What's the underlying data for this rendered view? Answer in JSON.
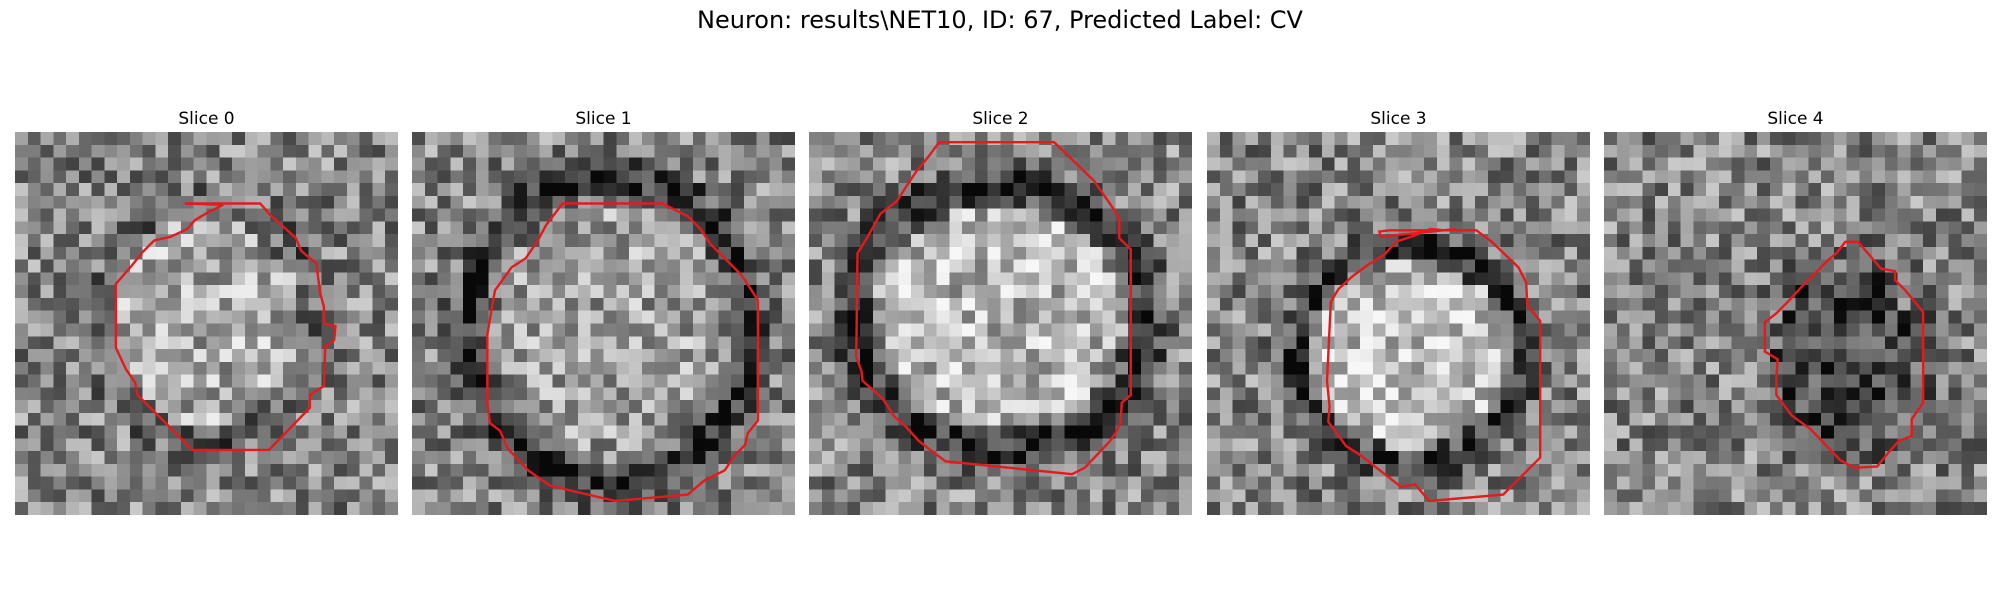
{
  "title": "Neuron: results\\NET10, ID: 67, Predicted Label: CV",
  "colors": {
    "contour": "#e41a1c",
    "background": "#ffffff",
    "colormap": "grayscale"
  },
  "grid": {
    "cols": 30,
    "rows": 30
  },
  "panels": [
    {
      "label": "Slice 0",
      "ring_dark": false,
      "ring_center": [
        15,
        15
      ],
      "ring_radius": [
        8.5,
        9.5
      ],
      "core_bright": 0.15,
      "contour": [
        [
          13.3,
          5.6
        ],
        [
          19.2,
          5.6
        ],
        [
          20,
          6.5
        ],
        [
          22,
          8.3
        ],
        [
          22.4,
          9.3
        ],
        [
          23.6,
          10.3
        ],
        [
          23.9,
          12.6
        ],
        [
          24.2,
          13.7
        ],
        [
          24.2,
          15
        ],
        [
          25.1,
          15.2
        ],
        [
          25,
          16.3
        ],
        [
          24.3,
          16.8
        ],
        [
          24.2,
          19.9
        ],
        [
          23.1,
          20.6
        ],
        [
          23.1,
          21.6
        ],
        [
          19.9,
          24.9
        ],
        [
          13.9,
          24.9
        ],
        [
          9.6,
          20.6
        ],
        [
          9.4,
          19.6
        ],
        [
          8.7,
          18.6
        ],
        [
          7.9,
          16.9
        ],
        [
          7.9,
          11.9
        ],
        [
          9.2,
          10.4
        ],
        [
          10,
          9.4
        ],
        [
          10.9,
          8.5
        ],
        [
          12.2,
          8.2
        ],
        [
          13.5,
          7.6
        ],
        [
          14.1,
          6.9
        ],
        [
          15.1,
          6.3
        ],
        [
          16.3,
          5.7
        ]
      ]
    },
    {
      "label": "Slice 1",
      "ring_dark": true,
      "ring_center": [
        15.5,
        15.5
      ],
      "ring_radius": [
        11,
        12
      ],
      "core_bright": 0.1,
      "contour": [
        [
          11.8,
          5.6
        ],
        [
          19.6,
          5.6
        ],
        [
          21.6,
          6.6
        ],
        [
          22.6,
          7.6
        ],
        [
          23.4,
          8.8
        ],
        [
          25.8,
          11.2
        ],
        [
          26.4,
          12.1
        ],
        [
          27.1,
          13.2
        ],
        [
          27.1,
          22.6
        ],
        [
          26.3,
          23.6
        ],
        [
          26.1,
          24.5
        ],
        [
          25.3,
          25.3
        ],
        [
          24.5,
          26.5
        ],
        [
          22.9,
          27.3
        ],
        [
          21.6,
          28.4
        ],
        [
          15.9,
          28.9
        ],
        [
          10.8,
          27.7
        ],
        [
          9.1,
          26.5
        ],
        [
          7.5,
          24.8
        ],
        [
          6.9,
          23.4
        ],
        [
          6.1,
          22.8
        ],
        [
          5.9,
          21.2
        ],
        [
          5.9,
          19.1
        ],
        [
          5.9,
          15.9
        ],
        [
          6.2,
          14.1
        ],
        [
          6.5,
          12.4
        ],
        [
          7.8,
          10.6
        ],
        [
          8.9,
          9.9
        ],
        [
          9.8,
          8.6
        ],
        [
          10.5,
          7.3
        ]
      ]
    },
    {
      "label": "Slice 2",
      "ring_dark": true,
      "ring_center": [
        15,
        14.5
      ],
      "ring_radius": [
        11.5,
        10.5
      ],
      "core_bright": 0.2,
      "contour": [
        [
          10.2,
          0.8
        ],
        [
          19.2,
          0.8
        ],
        [
          22.3,
          3.8
        ],
        [
          23.7,
          5.8
        ],
        [
          24.3,
          6.8
        ],
        [
          24.3,
          8.3
        ],
        [
          25.2,
          9.2
        ],
        [
          25.2,
          20.6
        ],
        [
          24.5,
          21.2
        ],
        [
          24.4,
          22.8
        ],
        [
          24,
          23.6
        ],
        [
          23.5,
          24.3
        ],
        [
          21.6,
          26.3
        ],
        [
          20.6,
          26.8
        ],
        [
          10.7,
          25.8
        ],
        [
          9.5,
          24.9
        ],
        [
          8.6,
          24.2
        ],
        [
          7.6,
          23.1
        ],
        [
          6.7,
          22.3
        ],
        [
          5.7,
          20.8
        ],
        [
          4.2,
          19.5
        ],
        [
          4.1,
          18.7
        ],
        [
          3.7,
          17.6
        ],
        [
          3.8,
          9.5
        ],
        [
          4.6,
          8.2
        ],
        [
          5.6,
          6.4
        ],
        [
          6.9,
          5.4
        ],
        [
          7.6,
          4.3
        ],
        [
          8.4,
          3.1
        ],
        [
          9.3,
          2
        ]
      ]
    },
    {
      "label": "Slice 3",
      "ring_dark": true,
      "ring_center": [
        16,
        17.5
      ],
      "ring_radius": [
        9,
        8.5
      ],
      "core_bright": 0.25,
      "contour": [
        [
          14.3,
          7.7
        ],
        [
          21.1,
          7.7
        ],
        [
          22.3,
          8.6
        ],
        [
          24.4,
          10.6
        ],
        [
          25,
          11.8
        ],
        [
          25.1,
          13.6
        ],
        [
          26.1,
          14.8
        ],
        [
          26.1,
          25.5
        ],
        [
          23.2,
          28.4
        ],
        [
          17.4,
          28.9
        ],
        [
          16.3,
          27.6
        ],
        [
          15.2,
          27.8
        ],
        [
          12,
          25.3
        ],
        [
          10.9,
          24.6
        ],
        [
          9.5,
          22.7
        ],
        [
          9.6,
          21.5
        ],
        [
          9.4,
          19.5
        ],
        [
          9.7,
          13.3
        ],
        [
          10.3,
          12.3
        ],
        [
          11.4,
          11.3
        ],
        [
          12.6,
          10.4
        ],
        [
          13.9,
          9.6
        ],
        [
          14.8,
          8.6
        ],
        [
          16.3,
          8.1
        ],
        [
          17.5,
          7.6
        ],
        [
          18.6,
          7.7
        ],
        [
          19.5,
          7.6
        ],
        [
          13.6,
          8.2
        ],
        [
          13.5,
          7.8
        ],
        [
          14.3,
          7.7
        ]
      ]
    },
    {
      "label": "Slice 4",
      "ring_dark": false,
      "ring_center": [
        19,
        17.5
      ],
      "ring_radius": [
        6.5,
        8
      ],
      "core_bright": -0.25,
      "contour": [
        [
          18.9,
          8.6
        ],
        [
          19.9,
          8.6
        ],
        [
          21.7,
          10.7
        ],
        [
          22.8,
          10.9
        ],
        [
          22.8,
          11.6
        ],
        [
          23.6,
          12.4
        ],
        [
          25,
          14.1
        ],
        [
          25,
          21.2
        ],
        [
          24.1,
          22.5
        ],
        [
          24.1,
          23.8
        ],
        [
          23.1,
          24.2
        ],
        [
          22.2,
          25.2
        ],
        [
          21.4,
          26.2
        ],
        [
          19.6,
          26.3
        ],
        [
          18.5,
          25.7
        ],
        [
          16.2,
          23.3
        ],
        [
          14.7,
          22.2
        ],
        [
          13.5,
          20.6
        ],
        [
          13.5,
          19.3
        ],
        [
          13.6,
          17.8
        ],
        [
          12.6,
          17.2
        ],
        [
          12.6,
          14.9
        ],
        [
          13.5,
          14.2
        ],
        [
          14.5,
          13.2
        ],
        [
          15.5,
          12.1
        ],
        [
          16.7,
          10.9
        ],
        [
          17.6,
          10
        ],
        [
          18.2,
          9.5
        ],
        [
          18.6,
          9
        ],
        [
          18.9,
          8.6
        ]
      ]
    }
  ]
}
